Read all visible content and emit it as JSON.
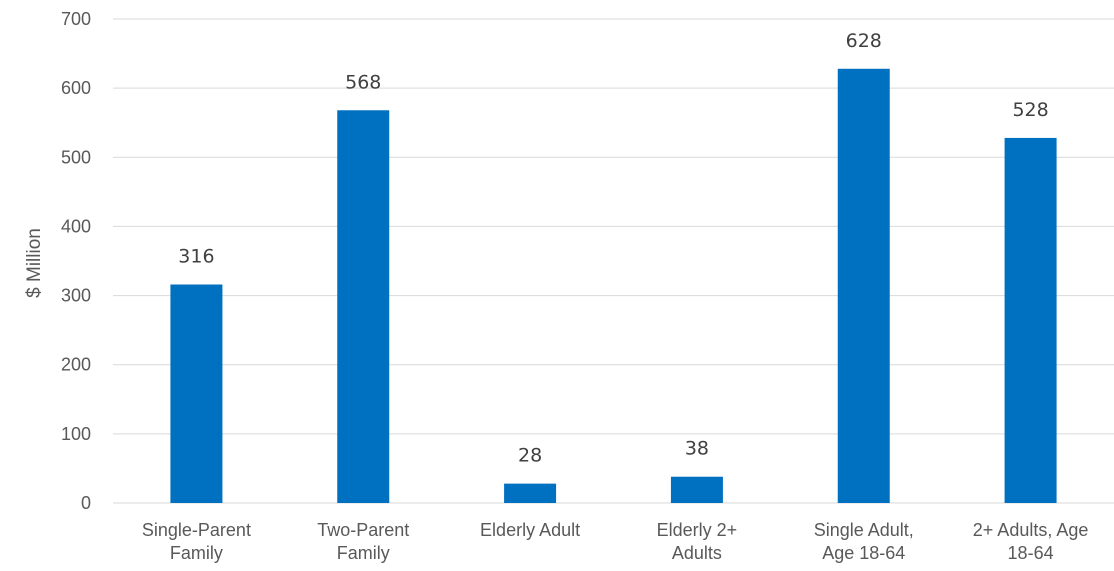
{
  "chart_data": {
    "type": "bar",
    "categories": [
      [
        "Single-Parent",
        "Family"
      ],
      [
        "Two-Parent",
        "Family"
      ],
      [
        "Elderly Adult"
      ],
      [
        "Elderly 2+",
        "Adults"
      ],
      [
        "Single Adult,",
        "Age 18-64"
      ],
      [
        "2+ Adults, Age",
        "18-64"
      ]
    ],
    "values": [
      316,
      568,
      28,
      38,
      628,
      528
    ],
    "data_labels": [
      "316",
      "568",
      "28",
      "38",
      "628",
      "528"
    ],
    "ylabel": "$ Million",
    "ylim": [
      0,
      700
    ],
    "yticks": [
      "0",
      "100",
      "200",
      "300",
      "400",
      "500",
      "600",
      "700"
    ],
    "grid": true,
    "bar_color": "#0070c0"
  }
}
